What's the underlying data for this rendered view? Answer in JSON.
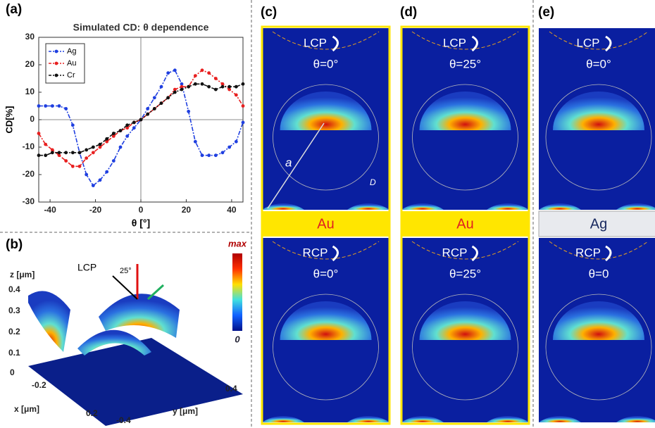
{
  "chart_data": {
    "type": "line",
    "title": "Simulated CD: θ dependence",
    "x_label": "θ [°]",
    "y_label": "CD[%]",
    "x": [
      -45,
      -42,
      -39,
      -36,
      -33,
      -30,
      -27,
      -24,
      -21,
      -18,
      -15,
      -12,
      -9,
      -6,
      -3,
      0,
      3,
      6,
      9,
      12,
      15,
      18,
      21,
      24,
      27,
      30,
      33,
      36,
      39,
      42,
      45
    ],
    "series": [
      {
        "name": "Ag",
        "color": "#1f3fe0",
        "values": [
          5,
          5,
          5,
          5,
          4,
          -2,
          -12,
          -20,
          -24,
          -22,
          -19,
          -15,
          -10,
          -6,
          -3,
          0,
          4,
          8,
          12,
          17,
          18,
          13,
          3,
          -8,
          -13,
          -13,
          -13,
          -12,
          -10,
          -8,
          -1
        ]
      },
      {
        "name": "Au",
        "color": "#e82020",
        "values": [
          -5,
          -9,
          -11,
          -13,
          -15,
          -17,
          -17,
          -14,
          -12,
          -10,
          -8,
          -6,
          -4,
          -3,
          -1,
          0,
          2,
          4,
          6,
          8,
          11,
          12,
          12,
          16,
          18,
          17,
          15,
          13,
          11,
          9,
          5
        ]
      },
      {
        "name": "Cr",
        "color": "#111111",
        "values": [
          -13,
          -13,
          -12,
          -12,
          -12,
          -12,
          -12,
          -11,
          -10,
          -9,
          -7,
          -5,
          -4,
          -2,
          -1,
          0,
          2,
          4,
          6,
          8,
          10,
          11,
          12,
          13,
          13,
          12,
          11,
          12,
          12,
          12,
          13
        ]
      }
    ],
    "xlim": [
      -45,
      45
    ],
    "xticks": [
      -40,
      -20,
      0,
      20,
      40
    ],
    "ylim": [
      -30,
      30
    ],
    "yticks": [
      -30,
      -20,
      -10,
      0,
      10,
      20,
      30
    ],
    "legend": "upper left"
  },
  "panel_labels": [
    "(a)",
    "(b)",
    "(c)",
    "(d)",
    "(e)"
  ],
  "panel_b": {
    "z_label": "z [μm]",
    "x_label": "x [μm]",
    "y_label": "y [μm]",
    "z_ticks": [
      "0.4",
      "0.3",
      "0.2",
      "0.1",
      "0"
    ],
    "x_ticks": [
      "-0.2",
      "0.2"
    ],
    "y_ticks": [
      "0.4",
      "-0.4"
    ],
    "beam": "LCP",
    "angle": "25°",
    "colorbar_max": "max",
    "colorbar_min": "0"
  },
  "panel_c": {
    "top_pol": "LCP",
    "top_angle": "θ=0°",
    "band": "Au",
    "bottom_pol": "RCP",
    "bottom_angle": "θ=0°",
    "lattice_label": "a",
    "diameter_label": "D"
  },
  "panel_d": {
    "top_pol": "LCP",
    "top_angle": "θ=25°",
    "band": "Au",
    "bottom_pol": "RCP",
    "bottom_angle": "θ=25°"
  },
  "panel_e": {
    "top_pol": "LCP",
    "top_angle": "θ=0°",
    "band": "Ag",
    "bottom_pol": "RCP",
    "bottom_angle": "θ=0"
  }
}
